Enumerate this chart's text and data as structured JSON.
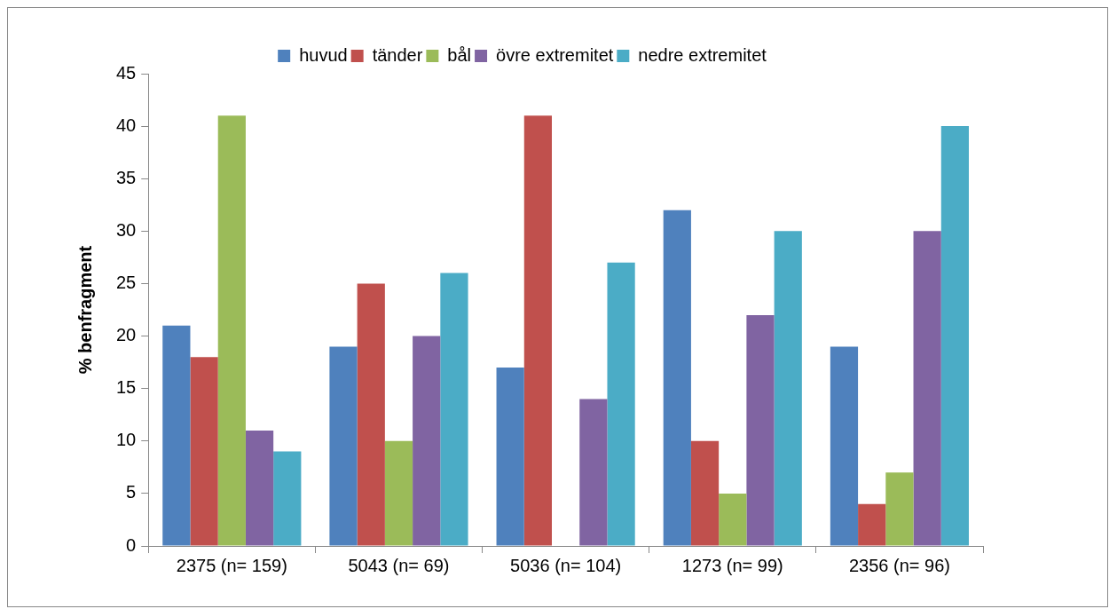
{
  "chart_data": {
    "type": "bar",
    "ylabel": "% benfragment",
    "categories": [
      "2375 (n= 159)",
      "5043 (n= 69)",
      "5036 (n= 104)",
      "1273 (n= 99)",
      "2356 (n= 96)"
    ],
    "series": [
      {
        "name": "huvud",
        "color": "#4f81bd",
        "values": [
          21,
          19,
          17,
          32,
          19
        ]
      },
      {
        "name": "tänder",
        "color": "#c0504d",
        "values": [
          18,
          25,
          41,
          10,
          4
        ]
      },
      {
        "name": "bål",
        "color": "#9bbb59",
        "values": [
          41,
          10,
          0,
          5,
          7
        ]
      },
      {
        "name": "övre extremitet",
        "color": "#8064a2",
        "values": [
          11,
          20,
          14,
          22,
          30
        ]
      },
      {
        "name": "nedre extremitet",
        "color": "#4bacc6",
        "values": [
          9,
          26,
          27,
          30,
          40
        ]
      }
    ],
    "ylim": [
      0,
      45
    ],
    "yticks": [
      0,
      5,
      10,
      15,
      20,
      25,
      30,
      35,
      40,
      45
    ],
    "grid": false,
    "legend": "top"
  }
}
